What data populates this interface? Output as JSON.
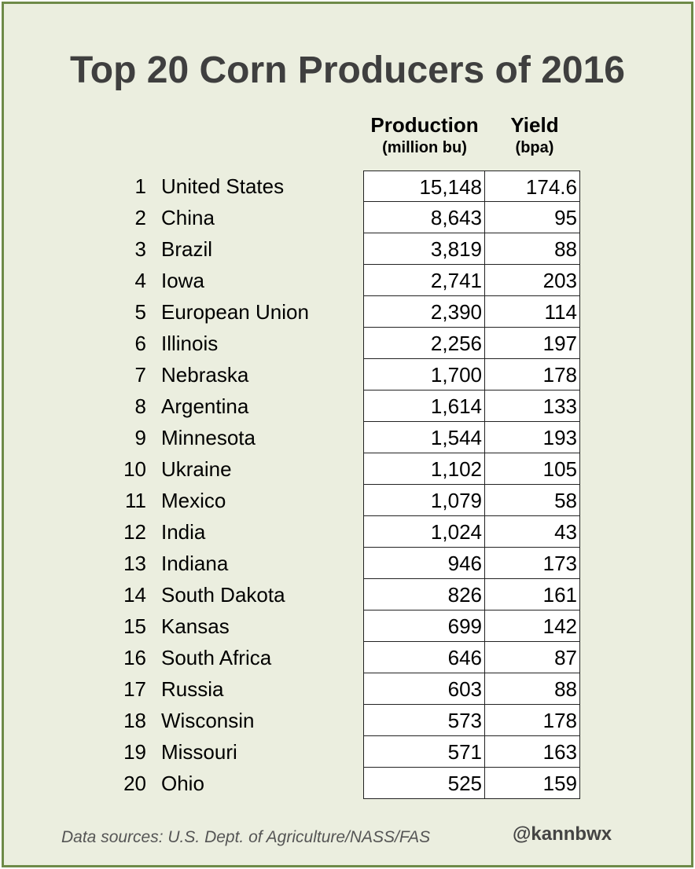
{
  "chart_data": {
    "type": "table",
    "title": "Top 20 Corn Producers of 2016",
    "columns": [
      {
        "label": "Production",
        "sublabel": "(million bu)"
      },
      {
        "label": "Yield",
        "sublabel": "(bpa)"
      }
    ],
    "rows": [
      {
        "rank": "1",
        "name": "United States",
        "production": "15,148",
        "yield": "174.6"
      },
      {
        "rank": "2",
        "name": "China",
        "production": "8,643",
        "yield": "95"
      },
      {
        "rank": "3",
        "name": "Brazil",
        "production": "3,819",
        "yield": "88"
      },
      {
        "rank": "4",
        "name": "Iowa",
        "production": "2,741",
        "yield": "203"
      },
      {
        "rank": "5",
        "name": "European Union",
        "production": "2,390",
        "yield": "114"
      },
      {
        "rank": "6",
        "name": "Illinois",
        "production": "2,256",
        "yield": "197"
      },
      {
        "rank": "7",
        "name": "Nebraska",
        "production": "1,700",
        "yield": "178"
      },
      {
        "rank": "8",
        "name": "Argentina",
        "production": "1,614",
        "yield": "133"
      },
      {
        "rank": "9",
        "name": "Minnesota",
        "production": "1,544",
        "yield": "193"
      },
      {
        "rank": "10",
        "name": "Ukraine",
        "production": "1,102",
        "yield": "105"
      },
      {
        "rank": "11",
        "name": "Mexico",
        "production": "1,079",
        "yield": "58"
      },
      {
        "rank": "12",
        "name": "India",
        "production": "1,024",
        "yield": "43"
      },
      {
        "rank": "13",
        "name": "Indiana",
        "production": "946",
        "yield": "173"
      },
      {
        "rank": "14",
        "name": "South Dakota",
        "production": "826",
        "yield": "161"
      },
      {
        "rank": "15",
        "name": "Kansas",
        "production": "699",
        "yield": "142"
      },
      {
        "rank": "16",
        "name": "South Africa",
        "production": "646",
        "yield": "87"
      },
      {
        "rank": "17",
        "name": "Russia",
        "production": "603",
        "yield": "88"
      },
      {
        "rank": "18",
        "name": "Wisconsin",
        "production": "573",
        "yield": "178"
      },
      {
        "rank": "19",
        "name": "Missouri",
        "production": "571",
        "yield": "163"
      },
      {
        "rank": "20",
        "name": "Ohio",
        "production": "525",
        "yield": "159"
      }
    ],
    "source": "Data sources: U.S. Dept. of Agriculture/NASS/FAS",
    "handle": "@kannbwx"
  },
  "colors": {
    "background": "#ebeedf",
    "border": "#6e8a48",
    "title": "#3f3f3f",
    "cell_background": "#ffffff"
  }
}
